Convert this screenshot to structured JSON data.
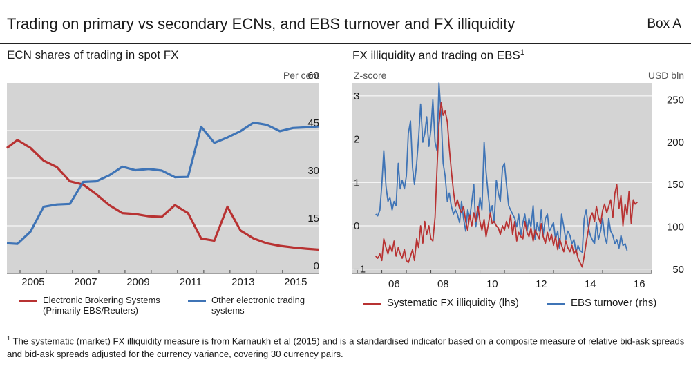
{
  "header": {
    "title": "Trading on primary vs secondary ECNs, and EBS turnover and FX illiquidity",
    "box_label": "Box A"
  },
  "footnote": {
    "marker": "1",
    "text": "The systematic (market) FX illiquidity measure is from Karnaukh et al (2015) and is a standardised indicator based on a composite measure of relative bid-ask spreads and bid-ask spreads adjusted for the currency variance, covering 30 currency pairs."
  },
  "chart_data": [
    {
      "type": "line",
      "title": "ECN shares of trading in spot FX",
      "ylabel_right": "Per cent",
      "ylim": [
        0,
        60
      ],
      "yticks": [
        "0",
        "15",
        "30",
        "45",
        "60"
      ],
      "xlim": [
        2004.0,
        2015.9
      ],
      "xticks": [
        2005,
        2007,
        2009,
        2011,
        2013,
        2015
      ],
      "xtick_labels": [
        "2005",
        "2007",
        "2009",
        "2011",
        "2013",
        "2015"
      ],
      "grid": "horizontal",
      "legend_position": "bottom",
      "colors": {
        "ebs": "#b83232",
        "other": "#3f74b6"
      },
      "series": [
        {
          "name": "Electronic Brokering Systems (Primarily EBS/Reuters)",
          "legend_lines": [
            "Electronic Brokering Systems",
            "(Primarily EBS/Reuters)"
          ],
          "color": "#b83232",
          "x": [
            2004.0,
            2004.4,
            2004.9,
            2005.4,
            2005.9,
            2006.4,
            2006.9,
            2007.4,
            2007.9,
            2008.4,
            2008.9,
            2009.4,
            2009.9,
            2010.4,
            2010.9,
            2011.4,
            2011.9,
            2012.4,
            2012.9,
            2013.4,
            2013.9,
            2014.4,
            2014.9,
            2015.4,
            2015.9
          ],
          "y": [
            39.5,
            42,
            39.5,
            35.5,
            33.5,
            29,
            28,
            25,
            21.5,
            19,
            18.7,
            18,
            17.8,
            21.5,
            19,
            11,
            10.3,
            21,
            13.5,
            11,
            9.5,
            8.7,
            8.2,
            7.8,
            7.5
          ]
        },
        {
          "name": "Other electronic trading systems",
          "legend_lines": [
            "Other electronic trading",
            "systems"
          ],
          "color": "#3f74b6",
          "x": [
            2004.0,
            2004.4,
            2004.9,
            2005.4,
            2005.9,
            2006.4,
            2006.9,
            2007.4,
            2007.9,
            2008.4,
            2008.9,
            2009.4,
            2009.9,
            2010.4,
            2010.9,
            2011.4,
            2011.9,
            2012.4,
            2012.9,
            2013.4,
            2013.9,
            2014.4,
            2014.9,
            2015.4,
            2015.9
          ],
          "y": [
            9.5,
            9.3,
            13.2,
            21,
            21.7,
            21.9,
            28.8,
            29,
            30.9,
            33.6,
            32.5,
            32.9,
            32.4,
            30.3,
            30.4,
            46.2,
            41.1,
            42.8,
            44.8,
            47.5,
            46.8,
            44.8,
            45.8,
            46,
            46.3
          ]
        }
      ]
    },
    {
      "type": "line",
      "title": "FX illiquidity and trading on EBS",
      "title_superscript": "1",
      "ylabel_left": "Z-score",
      "ylabel_right": "USD bln",
      "ylim_left": [
        -1.1,
        3.3
      ],
      "ylim_right": [
        45,
        270
      ],
      "yticks_left": [
        "−1",
        "0",
        "1",
        "2",
        "3"
      ],
      "yticks_right": [
        "50",
        "100",
        "150",
        "200",
        "250"
      ],
      "xlim": [
        2004.8,
        2017.0
      ],
      "xticks": [
        2006,
        2008,
        2010,
        2012,
        2014,
        2016
      ],
      "xtick_labels": [
        "06",
        "08",
        "10",
        "12",
        "14",
        "16"
      ],
      "grid": "horizontal",
      "legend_position": "bottom",
      "colors": {
        "illiquidity": "#b83232",
        "ebs": "#3f74b6"
      },
      "series": [
        {
          "name": "Systematic FX illiquidity (lhs)",
          "axis": "left",
          "color": "#b83232",
          "x": [
            2005.75,
            2005.83,
            2005.92,
            2006.0,
            2006.08,
            2006.17,
            2006.25,
            2006.33,
            2006.42,
            2006.5,
            2006.58,
            2006.67,
            2006.75,
            2006.83,
            2006.92,
            2007.0,
            2007.08,
            2007.17,
            2007.25,
            2007.33,
            2007.42,
            2007.5,
            2007.58,
            2007.67,
            2007.75,
            2007.83,
            2007.92,
            2008.0,
            2008.08,
            2008.17,
            2008.25,
            2008.33,
            2008.42,
            2008.5,
            2008.58,
            2008.67,
            2008.75,
            2008.83,
            2008.92,
            2009.0,
            2009.08,
            2009.17,
            2009.25,
            2009.33,
            2009.42,
            2009.5,
            2009.58,
            2009.67,
            2009.75,
            2009.83,
            2009.92,
            2010.0,
            2010.08,
            2010.17,
            2010.25,
            2010.33,
            2010.42,
            2010.5,
            2010.58,
            2010.67,
            2010.75,
            2010.83,
            2010.92,
            2011.0,
            2011.08,
            2011.17,
            2011.25,
            2011.33,
            2011.42,
            2011.5,
            2011.58,
            2011.67,
            2011.75,
            2011.83,
            2011.92,
            2012.0,
            2012.08,
            2012.17,
            2012.25,
            2012.33,
            2012.42,
            2012.5,
            2012.58,
            2012.67,
            2012.75,
            2012.83,
            2012.92,
            2013.0,
            2013.08,
            2013.17,
            2013.25,
            2013.33,
            2013.42,
            2013.5,
            2013.58,
            2013.67,
            2013.75,
            2013.83,
            2013.92,
            2014.0,
            2014.08,
            2014.17,
            2014.25,
            2014.33,
            2014.42,
            2014.5,
            2014.58,
            2014.67,
            2014.75,
            2014.83,
            2014.92,
            2015.0,
            2015.08,
            2015.17,
            2015.25,
            2015.33,
            2015.42,
            2015.5,
            2015.58,
            2015.67,
            2015.75,
            2015.83,
            2015.92,
            2016.0,
            2016.08,
            2016.17,
            2016.25,
            2016.33,
            2016.42
          ],
          "y": [
            -0.7,
            -0.75,
            -0.65,
            -0.8,
            -0.3,
            -0.5,
            -0.65,
            -0.45,
            -0.6,
            -0.35,
            -0.7,
            -0.5,
            -0.65,
            -0.75,
            -0.55,
            -0.8,
            -0.85,
            -0.7,
            -0.55,
            -0.8,
            -0.3,
            -0.5,
            0.0,
            -0.4,
            0.1,
            -0.2,
            0.0,
            -0.3,
            -0.35,
            0.2,
            1.3,
            2.35,
            2.85,
            2.55,
            2.65,
            2.4,
            1.8,
            1.3,
            0.8,
            0.45,
            0.6,
            0.4,
            0.3,
            0.45,
            0.1,
            -0.1,
            0.25,
            0.0,
            0.3,
            0.1,
            0.45,
            0.1,
            -0.1,
            0.15,
            -0.25,
            0.0,
            0.3,
            0.05,
            0.1,
            0.0,
            -0.05,
            -0.2,
            0.0,
            -0.1,
            0.1,
            -0.05,
            0.25,
            -0.2,
            0.1,
            -0.35,
            -0.15,
            -0.25,
            -0.3,
            0.1,
            -0.15,
            -0.25,
            -0.05,
            -0.35,
            -0.1,
            -0.2,
            -0.3,
            0.05,
            -0.25,
            -0.4,
            -0.15,
            -0.35,
            -0.2,
            -0.45,
            -0.25,
            -0.55,
            -0.3,
            -0.45,
            -0.6,
            -0.35,
            -0.5,
            -0.6,
            -0.45,
            -0.65,
            -0.55,
            -0.75,
            -0.85,
            -0.95,
            -0.7,
            -0.4,
            -0.1,
            0.2,
            0.3,
            0.1,
            0.45,
            0.2,
            0.05,
            0.35,
            0.5,
            0.3,
            0.45,
            0.6,
            0.2,
            0.75,
            0.95,
            0.4,
            0.7,
            0.0,
            0.5,
            0.25,
            0.8,
            0.05,
            0.6,
            0.5,
            0.55
          ]
        },
        {
          "name": "EBS turnover (rhs)",
          "axis": "right",
          "color": "#3f74b6",
          "x": [
            2005.75,
            2005.83,
            2005.92,
            2006.0,
            2006.08,
            2006.17,
            2006.25,
            2006.33,
            2006.42,
            2006.5,
            2006.58,
            2006.67,
            2006.75,
            2006.83,
            2006.92,
            2007.0,
            2007.08,
            2007.17,
            2007.25,
            2007.33,
            2007.42,
            2007.5,
            2007.58,
            2007.67,
            2007.75,
            2007.83,
            2007.92,
            2008.0,
            2008.08,
            2008.17,
            2008.25,
            2008.33,
            2008.42,
            2008.5,
            2008.58,
            2008.67,
            2008.75,
            2008.83,
            2008.92,
            2009.0,
            2009.08,
            2009.17,
            2009.25,
            2009.33,
            2009.42,
            2009.5,
            2009.58,
            2009.67,
            2009.75,
            2009.83,
            2009.92,
            2010.0,
            2010.08,
            2010.17,
            2010.25,
            2010.33,
            2010.42,
            2010.5,
            2010.58,
            2010.67,
            2010.75,
            2010.83,
            2010.92,
            2011.0,
            2011.08,
            2011.17,
            2011.25,
            2011.33,
            2011.42,
            2011.5,
            2011.58,
            2011.67,
            2011.75,
            2011.83,
            2011.92,
            2012.0,
            2012.08,
            2012.17,
            2012.25,
            2012.33,
            2012.42,
            2012.5,
            2012.58,
            2012.67,
            2012.75,
            2012.83,
            2012.92,
            2013.0,
            2013.08,
            2013.17,
            2013.25,
            2013.33,
            2013.42,
            2013.5,
            2013.58,
            2013.67,
            2013.75,
            2013.83,
            2013.92,
            2014.0,
            2014.08,
            2014.17,
            2014.25,
            2014.33,
            2014.42,
            2014.5,
            2014.58,
            2014.67,
            2014.75,
            2014.83,
            2014.92,
            2015.0,
            2015.08,
            2015.17,
            2015.25,
            2015.33,
            2015.42,
            2015.5,
            2015.58,
            2015.67,
            2015.75,
            2015.83,
            2015.92,
            2016.0
          ],
          "y": [
            115,
            113,
            120,
            150,
            190,
            148,
            130,
            135,
            120,
            130,
            125,
            175,
            145,
            155,
            145,
            160,
            210,
            225,
            170,
            150,
            175,
            205,
            245,
            200,
            210,
            230,
            195,
            215,
            250,
            200,
            190,
            270,
            230,
            175,
            160,
            130,
            140,
            125,
            115,
            120,
            115,
            105,
            130,
            110,
            95,
            120,
            110,
            130,
            150,
            100,
            115,
            135,
            120,
            200,
            165,
            140,
            115,
            125,
            105,
            155,
            140,
            130,
            170,
            175,
            150,
            125,
            120,
            115,
            110,
            100,
            115,
            90,
            105,
            115,
            95,
            110,
            100,
            125,
            85,
            105,
            95,
            120,
            90,
            110,
            115,
            95,
            100,
            105,
            85,
            95,
            75,
            115,
            100,
            85,
            95,
            90,
            80,
            85,
            70,
            78,
            72,
            70,
            110,
            120,
            100,
            90,
            85,
            80,
            105,
            85,
            95,
            110,
            90,
            80,
            110,
            95,
            90,
            80,
            85,
            75,
            90,
            78,
            80,
            72
          ]
        }
      ]
    }
  ]
}
